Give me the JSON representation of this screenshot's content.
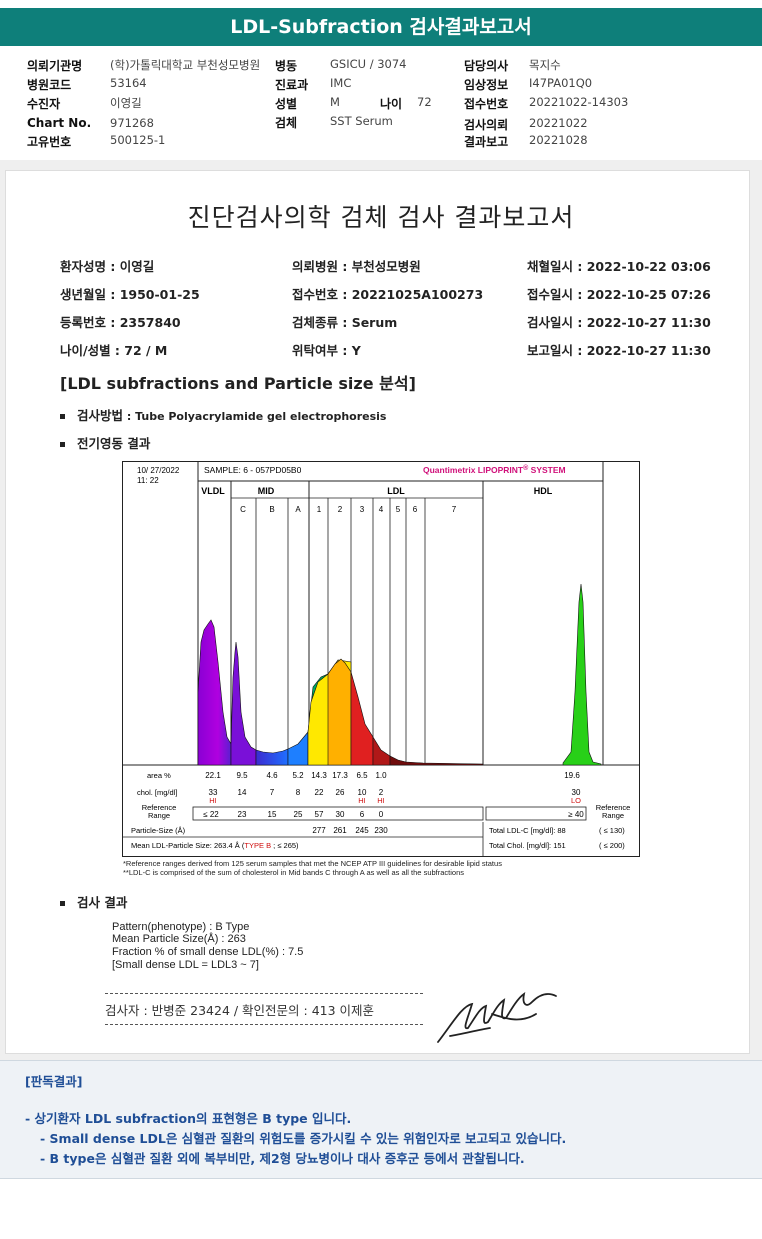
{
  "title": "LDL-Subfraction 검사결과보고서",
  "header": {
    "labels": [
      "의뢰기관명",
      "병원코드",
      "수진자",
      "Chart No.",
      "고유번호",
      "병동",
      "진료과",
      "성별",
      "나이",
      "검체",
      "담당의사",
      "임상정보",
      "접수번호",
      "검사의뢰",
      "결과보고"
    ],
    "values": [
      "(학)가톨릭대학교 부천성모병원",
      "53164",
      "이영길",
      "971268",
      "500125-1",
      "GSICU / 3074",
      "IMC",
      "M",
      "72",
      "SST Serum",
      "목지수",
      "I47PA01Q0",
      "20221022-14303",
      "20221022",
      "20221028"
    ]
  },
  "report": {
    "title": "진단검사의학 검체 검사 결과보고서",
    "info": [
      "환자성명 : 이영길",
      "의뢰병원 : 부천성모병원",
      "채혈일시 : 2022-10-22 03:06",
      "생년월일 : 1950-01-25",
      "접수번호 : 20221025A100273",
      "접수일시 : 2022-10-25 07:26",
      "등록번호 : 2357840",
      "검체종류 : Serum",
      "검사일시 : 2022-10-27 11:30",
      "나이/성별 : 72 / M",
      "위탁여부 : Y",
      "보고일시 : 2022-10-27 11:30"
    ],
    "section_title": "[LDL subfractions and Particle size 분석]",
    "method_label": "검사방법",
    "method_value": " : Tube Polyacrylamide gel electrophoresis",
    "electro_label": "전기영동 결과",
    "result_label": "검사 결과",
    "results": [
      "Pattern(phenotype) : B Type",
      "Mean Particle Size(Å) : 263",
      "Fraction % of small dense LDL(%) : 7.5",
      "[Small dense LDL = LDL3 ~ 7]"
    ],
    "signature": "검사자 : 반병준  23424  /  확인전문의 : 413  이제훈"
  },
  "chart_data": {
    "type": "area",
    "date": "10/ 27/2022",
    "time": "11: 22",
    "sample": "SAMPLE:   6 - 057PD05B0",
    "brand": "Quantimetrix LIPOPRINT",
    "brand_sup": "®",
    "brand_suffix": " SYSTEM",
    "groups": [
      "VLDL",
      "MID",
      "LDL",
      "HDL"
    ],
    "bands": [
      "C",
      "B",
      "A",
      "1",
      "2",
      "3",
      "4",
      "5",
      "6",
      "7"
    ],
    "rows": {
      "area_label": "area %",
      "area": [
        "22.1",
        "9.5",
        "4.6",
        "5.2",
        "14.3",
        "17.3",
        "6.5",
        "1.0",
        "19.6"
      ],
      "chol_label": "chol. [mg/dl]",
      "chol": [
        "33",
        "14",
        "7",
        "8",
        "22",
        "26",
        "10",
        "2",
        "30"
      ],
      "flags": [
        "HI",
        "",
        "",
        "",
        "",
        "",
        "HI",
        "HI",
        "LO"
      ],
      "ref_label": [
        "Reference",
        "Range"
      ],
      "ref": [
        "≤ 22",
        "23",
        "15",
        "25",
        "57",
        "30",
        "6",
        "0",
        "≥ 40"
      ],
      "ref_right": [
        "Reference",
        "Range"
      ],
      "size_label": "Particle-Size (Å)",
      "size": [
        "277",
        "261",
        "245",
        "230"
      ],
      "mean_label": "Mean LDL-Particle Size:   263.4 Å  (",
      "mean_type": "TYPE B",
      "mean_suffix": " ; ≤ 265)",
      "total_ldl": "Total LDL-C [mg/dl]:  88",
      "total_ldl_ref": "( ≤ 130)",
      "total_chol": "Total Chol. [mg/dl]:   151",
      "total_chol_ref": "( ≤ 200)"
    }
  },
  "footnotes": [
    "*Reference ranges derived from 125 serum samples that met the NCEP ATP III guidelines for desirable lipid status",
    "**LDL-C is comprised of the sum of cholesterol in Mid bands C through A as well as all the subfractions"
  ],
  "interpretation": {
    "title": "[판독결과]",
    "lines": [
      "- 상기환자 LDL subfraction의 표현형은 B type 입니다.",
      "-  Small dense LDL은 심혈관 질환의 위험도를 증가시킬 수 있는 위험인자로 보고되고 있습니다.",
      "-  B type은 심혈관 질환 외에 복부비만, 제2형 당뇨병이나 대사 증후군 등에서 관찰됩니다."
    ]
  },
  "colors": {
    "header_bg": "#0e7f7a",
    "interp_text": "#1f4e96",
    "brand": "#d0107a"
  }
}
